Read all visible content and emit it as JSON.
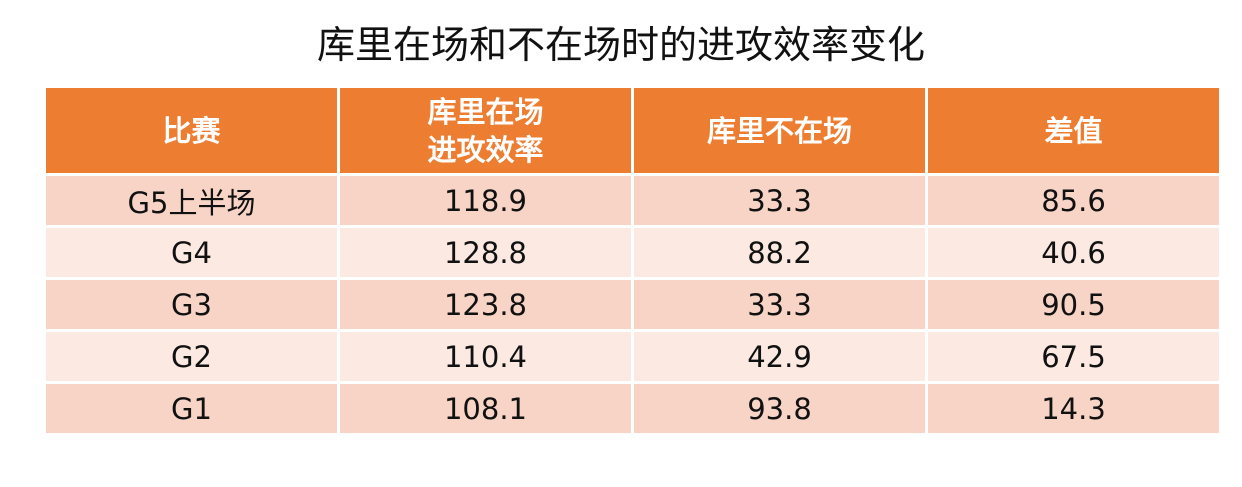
{
  "header": {
    "title": "库里在场和不在场时的进攻效率变化"
  },
  "table": {
    "columns": [
      "比赛",
      [
        "库里在场",
        "进攻效率"
      ],
      "库里不在场",
      "差值"
    ],
    "rows": [
      [
        "G5上半场",
        "118.9",
        "33.3",
        "85.6"
      ],
      [
        "G4",
        "128.8",
        "88.2",
        "40.6"
      ],
      [
        "G3",
        "123.8",
        "33.3",
        "90.5"
      ],
      [
        "G2",
        "110.4",
        "42.9",
        "67.5"
      ],
      [
        "G1",
        "108.1",
        "93.8",
        "14.3"
      ]
    ]
  }
}
